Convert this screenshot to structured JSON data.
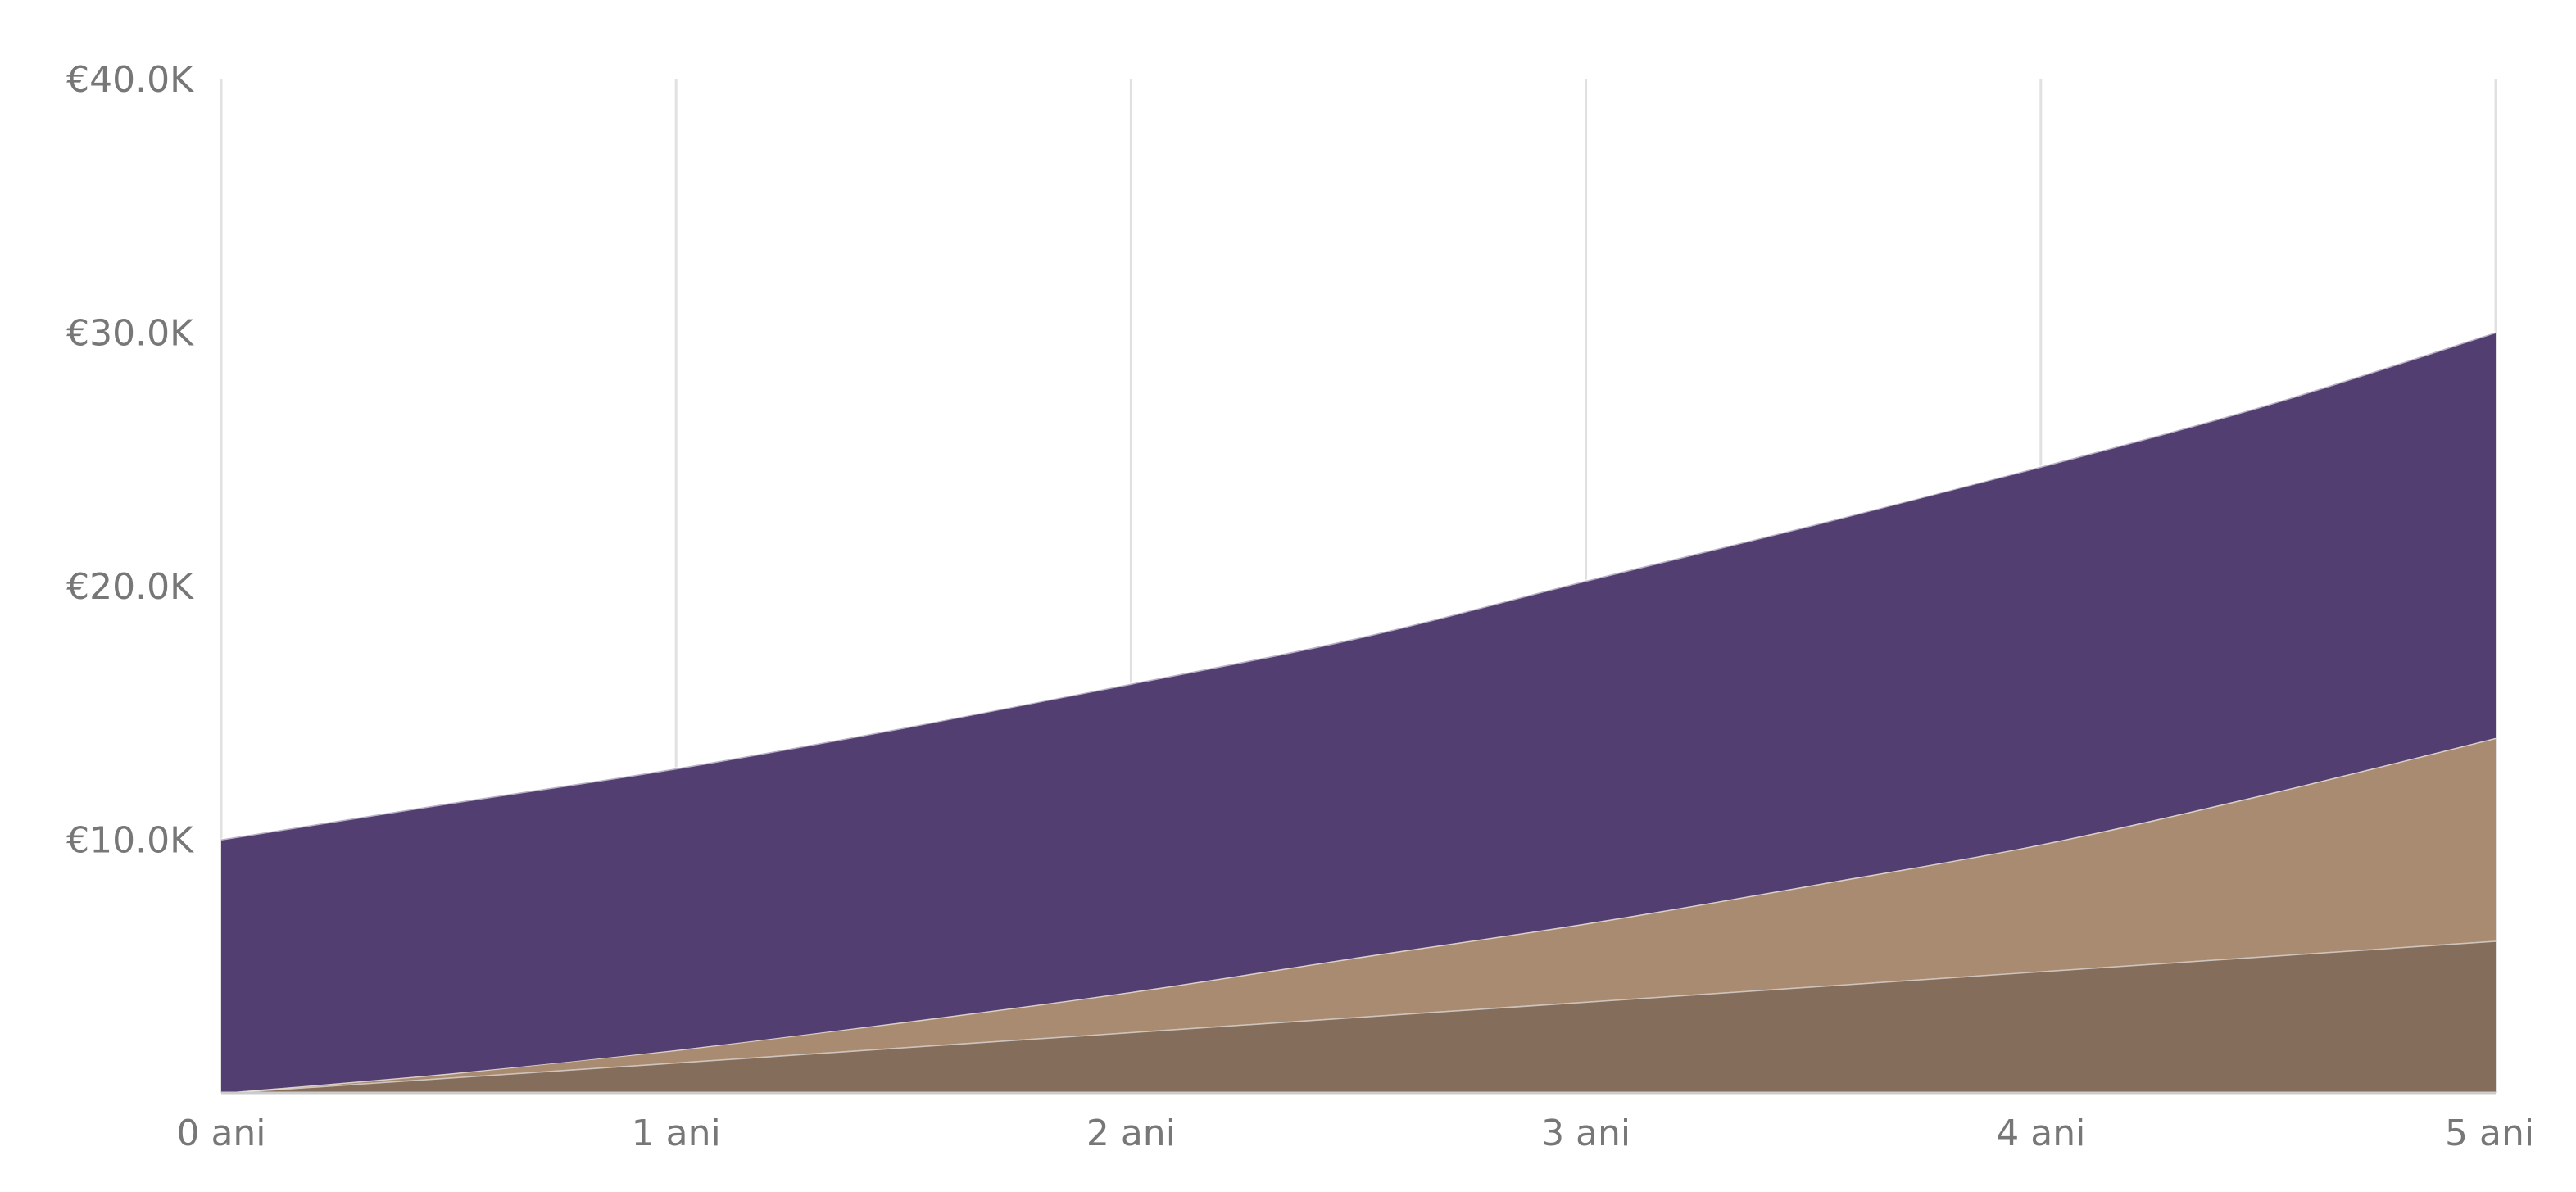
{
  "chart_data": {
    "type": "area",
    "stacked": true,
    "x": [
      0,
      0.5,
      1,
      1.5,
      2,
      2.5,
      3,
      3.5,
      4,
      4.5,
      5
    ],
    "x_tick_values": [
      0,
      1,
      2,
      3,
      4,
      5
    ],
    "x_tick_labels": [
      "0 ani",
      "1 ani",
      "2 ani",
      "3 ani",
      "4 ani",
      "5 ani"
    ],
    "y_tick_values": [
      10000,
      20000,
      30000,
      40000
    ],
    "y_tick_labels": [
      "€10.0K",
      "€20.0K",
      "€30.0K",
      "€40.0K"
    ],
    "xlim": [
      0,
      5
    ],
    "ylim": [
      0,
      40000
    ],
    "grid": "vertical",
    "legend": "none",
    "title": "",
    "xlabel": "",
    "ylabel": "",
    "series": [
      {
        "values": [
          0,
          600,
          1200,
          1800,
          2400,
          3000,
          3600,
          4200,
          4800,
          5400,
          6000
        ],
        "color": "#846d5b"
      },
      {
        "values": [
          0,
          160,
          490,
          990,
          1580,
          2350,
          3080,
          4000,
          5000,
          6400,
          8000
        ],
        "color": "#a88b71"
      },
      {
        "values": [
          10000,
          10660,
          11110,
          11610,
          12160,
          12600,
          13520,
          14200,
          14900,
          15350,
          16000
        ],
        "color": "#523e70"
      }
    ]
  }
}
